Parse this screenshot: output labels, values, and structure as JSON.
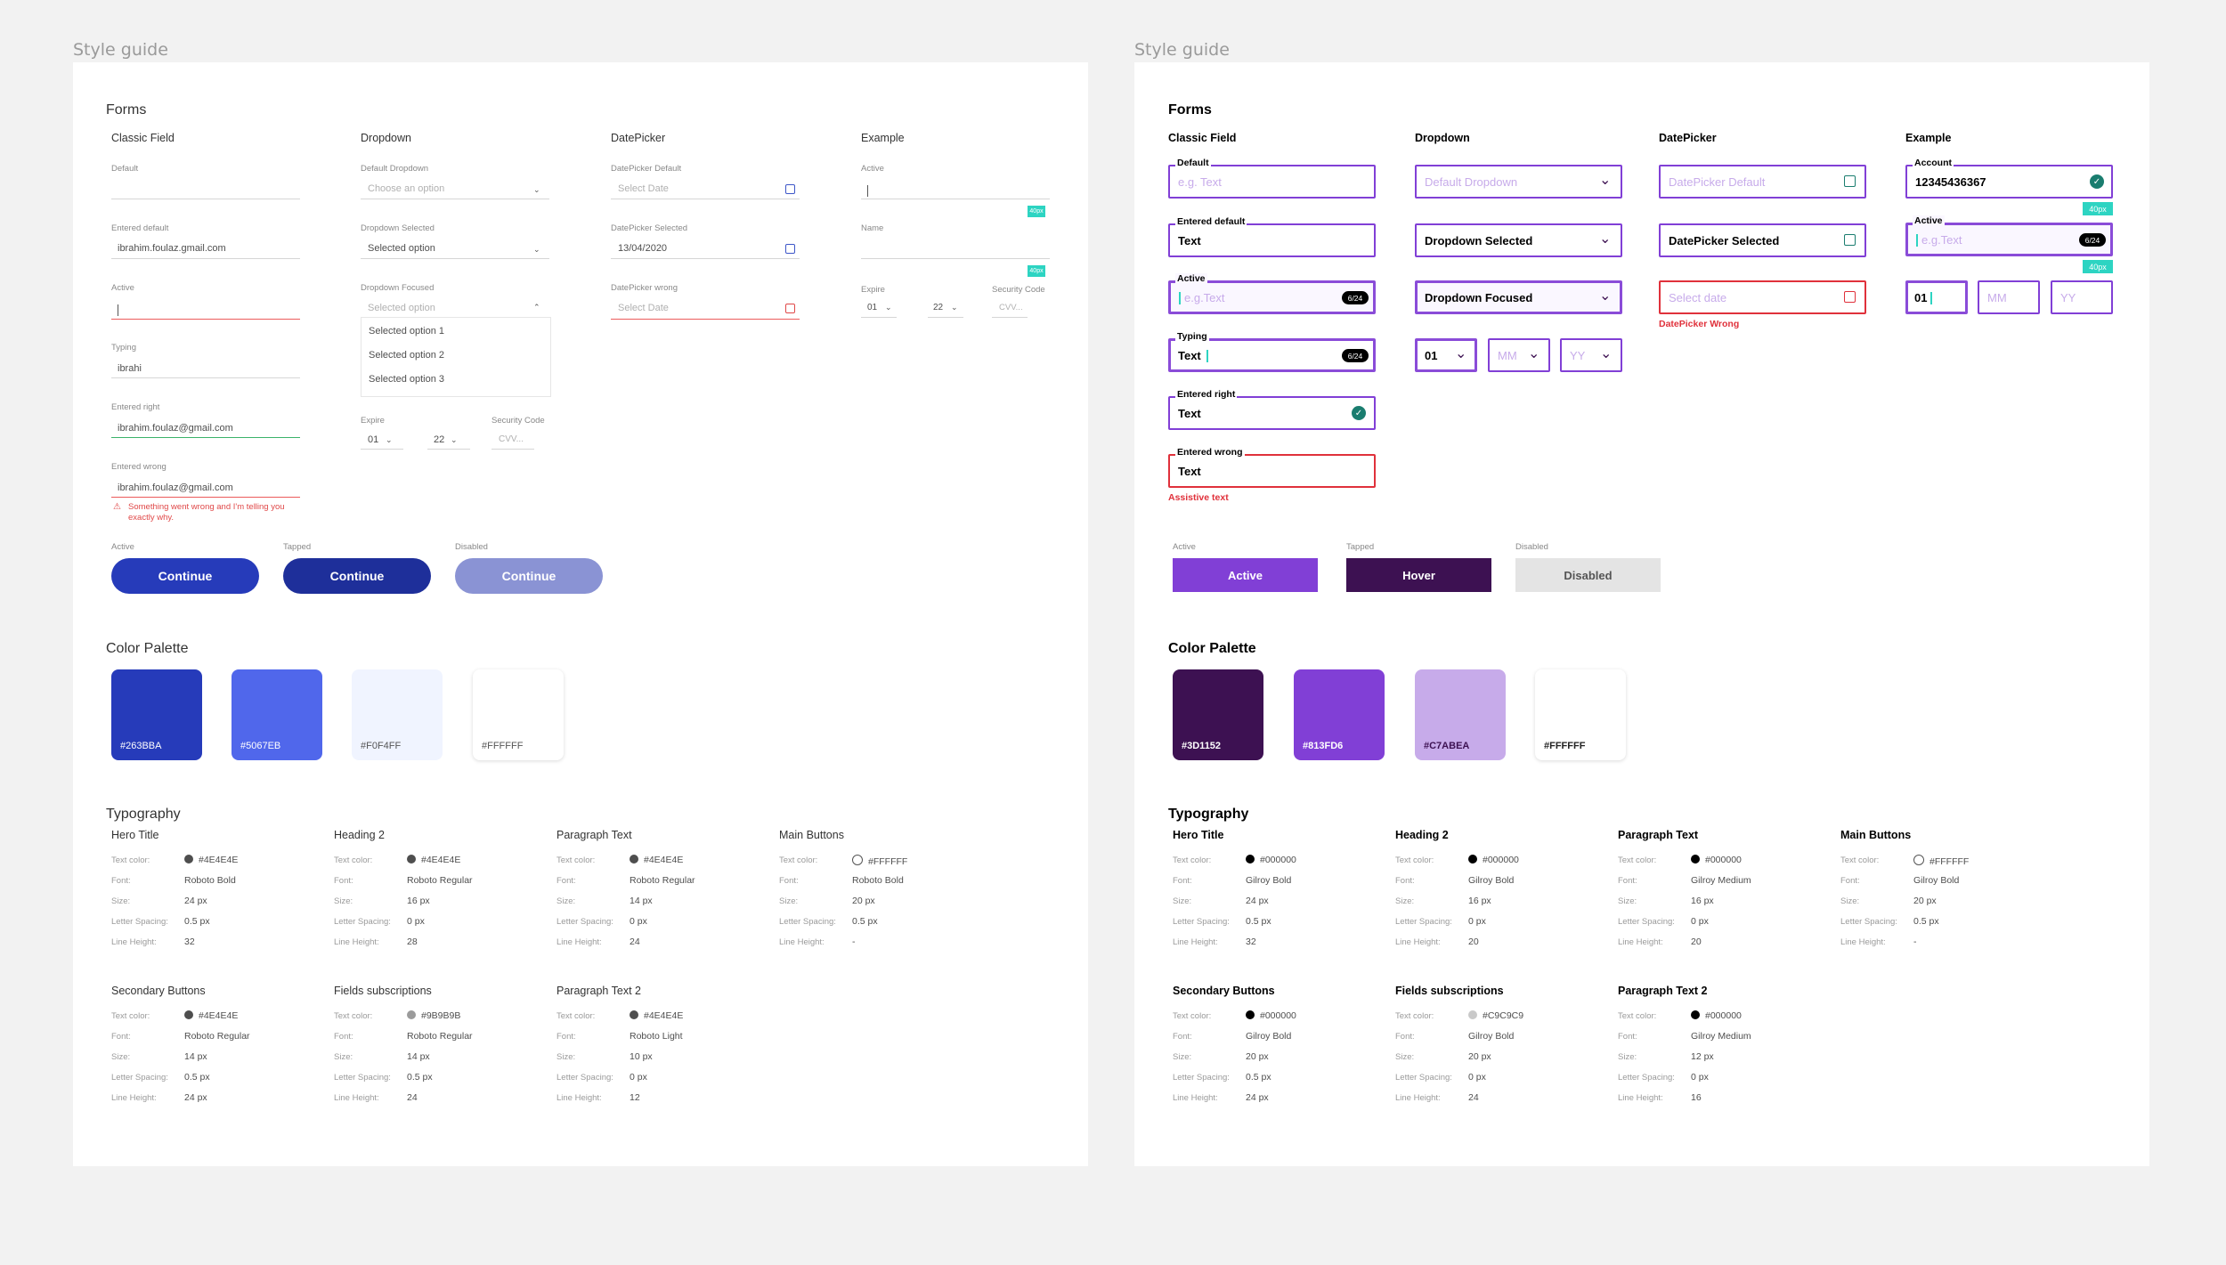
{
  "frames": {
    "left_title": "Style guide",
    "right_title": "Style guide"
  },
  "left": {
    "forms_title": "Forms",
    "columns": {
      "classic": "Classic Field",
      "dropdown": "Dropdown",
      "datepicker": "DatePicker",
      "example": "Example"
    },
    "classic": {
      "default_label": "Default",
      "entered_default_label": "Entered default",
      "entered_default_value": "ibrahim.foulaz.gmail.com",
      "active_label": "Active",
      "typing_label": "Typing",
      "typing_value": "ibrahi",
      "entered_right_label": "Entered right",
      "entered_right_value": "ibrahim.foulaz@gmail.com",
      "entered_wrong_label": "Entered wrong",
      "entered_wrong_value": "ibrahim.foulaz@gmail.com",
      "error_text": "Something went wrong and I'm telling you exactly why."
    },
    "dropdown": {
      "default_label": "Default Dropdown",
      "default_ph": "Choose an option",
      "selected_label": "Dropdown Selected",
      "selected_value": "Selected option",
      "focused_label": "Dropdown Focused",
      "focused_ph": "Selected option",
      "options": [
        "Selected option 1",
        "Selected option 2",
        "Selected option 3"
      ],
      "expire_label": "Expire",
      "security_label": "Security Code",
      "month": "01",
      "year": "22",
      "cvv_ph": "CVV..."
    },
    "datepicker": {
      "default_label": "DatePicker Default",
      "default_ph": "Select Date",
      "selected_label": "DatePicker Selected",
      "selected_value": "13/04/2020",
      "wrong_label": "DatePicker wrong",
      "wrong_ph": "Select Date"
    },
    "example": {
      "active_label": "Active",
      "name_label": "Name",
      "tag": "40px",
      "expire_label": "Expire",
      "security_label": "Security Code",
      "month": "01",
      "year": "22",
      "cvv_ph": "CVV..."
    },
    "buttons": {
      "active_label": "Active",
      "tapped_label": "Tapped",
      "disabled_label": "Disabled",
      "active_text": "Continue",
      "tapped_text": "Continue",
      "disabled_text": "Continue",
      "active_color": "#263BBA",
      "tapped_color": "#1E2F9A",
      "disabled_color": "#8A93D4"
    },
    "palette_title": "Color Palette",
    "palette": [
      {
        "hex": "#263BBA",
        "label": "#263BBA"
      },
      {
        "hex": "#5067EB",
        "label": "#5067EB"
      },
      {
        "hex": "#F0F4FF",
        "label": "#F0F4FF"
      },
      {
        "hex": "#FFFFFF",
        "label": "#FFFFFF"
      }
    ],
    "typography_title": "Typography",
    "keys": {
      "color": "Text color:",
      "font": "Font:",
      "size": "Size:",
      "spacing": "Letter Spacing:",
      "lineheight": "Line Height:"
    },
    "typography": [
      {
        "name": "Hero Title",
        "color_hex": "#4E4E4E",
        "color": "#4E4E4E",
        "font": "Roboto Bold",
        "size": "24 px",
        "spacing": "0.5 px",
        "lineheight": "32"
      },
      {
        "name": "Heading 2",
        "color_hex": "#4E4E4E",
        "color": "#4E4E4E",
        "font": "Roboto Regular",
        "size": "16 px",
        "spacing": "0 px",
        "lineheight": "28"
      },
      {
        "name": "Paragraph Text",
        "color_hex": "#4E4E4E",
        "color": "#4E4E4E",
        "font": "Roboto Regular",
        "size": "14 px",
        "spacing": "0 px",
        "lineheight": "24"
      },
      {
        "name": "Main Buttons",
        "color_hex": "#FFFFFF",
        "color": "#FFFFFF",
        "font": "Roboto Bold",
        "size": "20 px",
        "spacing": "0.5 px",
        "lineheight": "-"
      },
      {
        "name": "Secondary Buttons",
        "color_hex": "#4E4E4E",
        "color": "#4E4E4E",
        "font": "Roboto Regular",
        "size": "14 px",
        "spacing": "0.5 px",
        "lineheight": "24 px"
      },
      {
        "name": "Fields subscriptions",
        "color_hex": "#9B9B9B",
        "color": "#9B9B9B",
        "font": "Roboto Regular",
        "size": "14 px",
        "spacing": "0.5 px",
        "lineheight": "24"
      },
      {
        "name": "Paragraph Text 2",
        "color_hex": "#4E4E4E",
        "color": "#4E4E4E",
        "font": "Roboto Light",
        "size": "10 px",
        "spacing": "0 px",
        "lineheight": "12"
      }
    ]
  },
  "right": {
    "forms_title": "Forms",
    "columns": {
      "classic": "Classic Field",
      "dropdown": "Dropdown",
      "datepicker": "DatePicker",
      "example": "Example"
    },
    "classic": {
      "default_label": "Default",
      "default_ph": "e.g. Text",
      "entered_default_label": "Entered default",
      "entered_default_value": "Text",
      "active_label": "Active",
      "active_ph": "e.g.Text",
      "active_counter": "6/24",
      "typing_label": "Typing",
      "typing_value": "Text",
      "typing_counter": "6/24",
      "entered_right_label": "Entered right",
      "entered_right_value": "Text",
      "entered_wrong_label": "Entered wrong",
      "entered_wrong_value": "Text",
      "assistive": "Assistive text"
    },
    "dropdown": {
      "default_ph": "Default Dropdown",
      "selected_value": "Dropdown Selected",
      "focused_value": "Dropdown Focused",
      "day": "01",
      "month_ph": "MM",
      "year_ph": "YY"
    },
    "datepicker": {
      "default_ph": "DatePicker Default",
      "selected_value": "DatePicker Selected",
      "wrong_ph": "Select date",
      "wrong_text": "DatePicker Wrong"
    },
    "example": {
      "account_label": "Account",
      "account_value": "12345436367",
      "active_label": "Active",
      "active_ph": "e.g.Text",
      "active_counter": "6/24",
      "tag": "40px",
      "day": "01",
      "month_ph": "MM",
      "year_ph": "YY"
    },
    "buttons": {
      "active_label": "Active",
      "tapped_label": "Tapped",
      "disabled_label": "Disabled",
      "active_text": "Active",
      "tapped_text": "Hover",
      "disabled_text": "Disabled",
      "active_color": "#813FD6",
      "tapped_color": "#3D1152",
      "disabled_color": "#E4E4E4"
    },
    "palette_title": "Color Palette",
    "palette": [
      {
        "hex": "#3D1152",
        "label": "#3D1152"
      },
      {
        "hex": "#813FD6",
        "label": "#813FD6"
      },
      {
        "hex": "#C7ABEA",
        "label": "#C7ABEA"
      },
      {
        "hex": "#FFFFFF",
        "label": "#FFFFFF"
      }
    ],
    "typography_title": "Typography",
    "keys": {
      "color": "Text color:",
      "font": "Font:",
      "size": "Size:",
      "spacing": "Letter Spacing:",
      "lineheight": "Line Height:"
    },
    "typography": [
      {
        "name": "Hero Title",
        "color_hex": "#000000",
        "color": "#000000",
        "font": "Gilroy Bold",
        "size": "24 px",
        "spacing": "0.5 px",
        "lineheight": "32"
      },
      {
        "name": "Heading 2",
        "color_hex": "#000000",
        "color": "#000000",
        "font": "Gilroy Bold",
        "size": "16 px",
        "spacing": "0 px",
        "lineheight": "20"
      },
      {
        "name": "Paragraph Text",
        "color_hex": "#000000",
        "color": "#000000",
        "font": "Gilroy Medium",
        "size": "16 px",
        "spacing": "0 px",
        "lineheight": "20"
      },
      {
        "name": "Main Buttons",
        "color_hex": "#FFFFFF",
        "color": "#FFFFFF",
        "font": "Gilroy Bold",
        "size": "20 px",
        "spacing": "0.5 px",
        "lineheight": "-"
      },
      {
        "name": "Secondary Buttons",
        "color_hex": "#000000",
        "color": "#000000",
        "font": "Gilroy Bold",
        "size": "20 px",
        "spacing": "0.5 px",
        "lineheight": "24 px"
      },
      {
        "name": "Fields subscriptions",
        "color_hex": "#C9C9C9",
        "color": "#C9C9C9",
        "font": "Gilroy Bold",
        "size": "20 px",
        "spacing": "0 px",
        "lineheight": "24"
      },
      {
        "name": "Paragraph Text 2",
        "color_hex": "#000000",
        "color": "#000000",
        "font": "Gilroy Medium",
        "size": "12 px",
        "spacing": "0 px",
        "lineheight": "16"
      }
    ]
  }
}
